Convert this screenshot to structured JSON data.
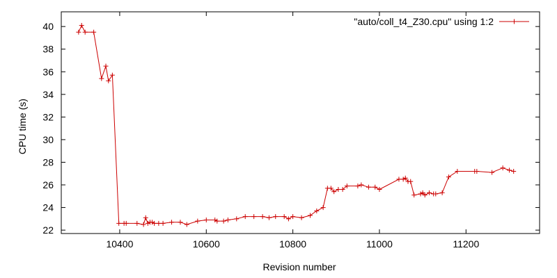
{
  "chart_data": {
    "type": "line",
    "xlabel": "Revision number",
    "ylabel": "CPU time (s)",
    "xlim": [
      10265,
      11370
    ],
    "ylim": [
      21.7,
      41.3
    ],
    "x_ticks": [
      10400,
      10600,
      10800,
      11000,
      11200
    ],
    "y_ticks": [
      22,
      24,
      26,
      28,
      30,
      32,
      34,
      36,
      38,
      40
    ],
    "grid": false,
    "legend_position": "top-right",
    "series": [
      {
        "name": "\"auto/coll_t4_Z30.cpu\" using 1:2",
        "color": "#cc0000",
        "marker": "plus",
        "x": [
          10305,
          10312,
          10320,
          10340,
          10358,
          10368,
          10374,
          10383,
          10398,
          10410,
          10415,
          10440,
          10455,
          10460,
          10465,
          10470,
          10475,
          10480,
          10490,
          10500,
          10520,
          10540,
          10555,
          10580,
          10600,
          10620,
          10625,
          10640,
          10650,
          10670,
          10690,
          10710,
          10730,
          10745,
          10760,
          10780,
          10790,
          10800,
          10820,
          10840,
          10855,
          10870,
          10880,
          10888,
          10895,
          10905,
          10915,
          10925,
          10950,
          10958,
          10975,
          10990,
          11000,
          11045,
          11055,
          11060,
          11066,
          11072,
          11080,
          11095,
          11100,
          11105,
          11115,
          11125,
          11130,
          11145,
          11160,
          11180,
          11220,
          11225,
          11260,
          11285,
          11300,
          11310
        ],
        "y": [
          39.5,
          40.1,
          39.5,
          39.5,
          35.4,
          36.5,
          35.2,
          35.7,
          22.6,
          22.6,
          22.6,
          22.6,
          22.5,
          23.1,
          22.6,
          22.7,
          22.7,
          22.6,
          22.6,
          22.6,
          22.7,
          22.7,
          22.5,
          22.8,
          22.9,
          22.9,
          22.8,
          22.8,
          22.9,
          23.0,
          23.2,
          23.2,
          23.2,
          23.1,
          23.2,
          23.2,
          23.0,
          23.2,
          23.1,
          23.3,
          23.7,
          24.0,
          25.7,
          25.7,
          25.4,
          25.6,
          25.6,
          25.9,
          25.9,
          26.0,
          25.8,
          25.8,
          25.6,
          26.5,
          26.5,
          26.6,
          26.3,
          26.3,
          25.1,
          25.2,
          25.3,
          25.1,
          25.3,
          25.2,
          25.2,
          25.3,
          26.7,
          27.2,
          27.2,
          27.2,
          27.1,
          27.5,
          27.3,
          27.2
        ]
      }
    ]
  }
}
